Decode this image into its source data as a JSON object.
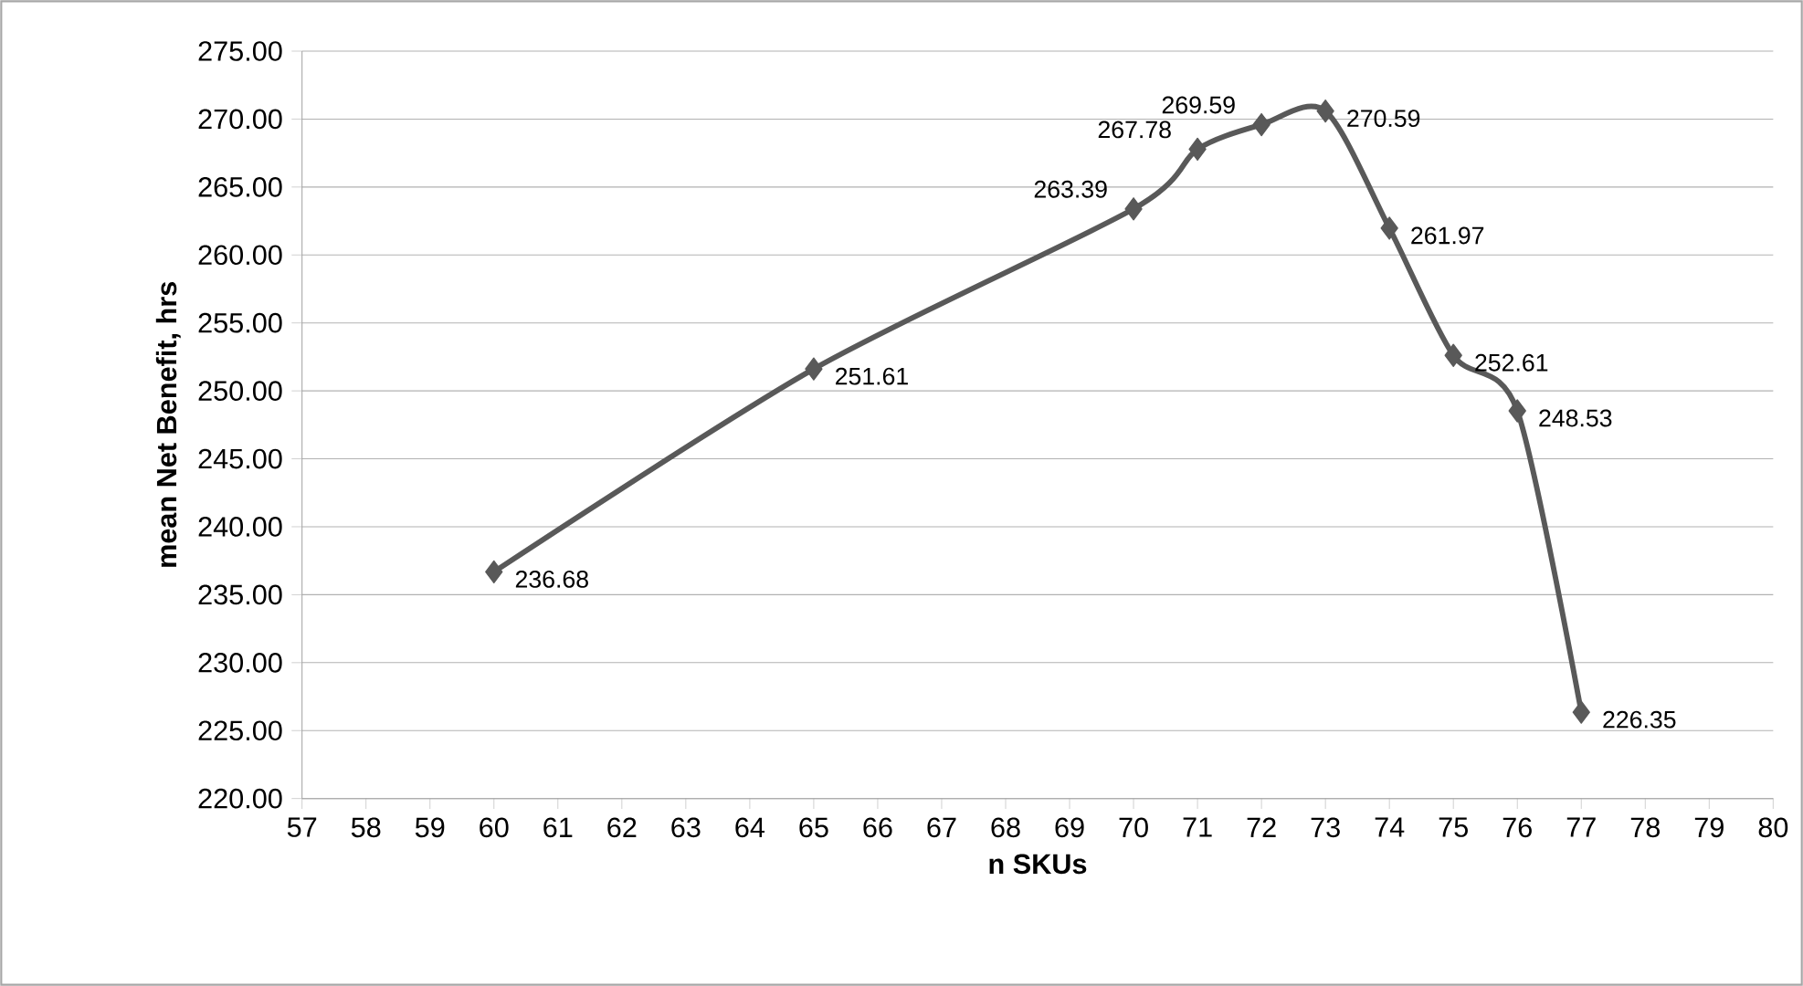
{
  "chart_data": {
    "type": "line",
    "xlabel": "n  SKUs",
    "ylabel": "mean Net Benefit, hrs",
    "x": [
      60,
      65,
      70,
      71,
      72,
      73,
      74,
      75,
      76,
      77
    ],
    "series": [
      {
        "color": "#595959",
        "values": [
          236.68,
          251.61,
          263.39,
          267.78,
          269.59,
          270.59,
          261.97,
          252.61,
          248.53,
          226.35
        ]
      }
    ],
    "xlim": [
      57,
      80
    ],
    "xticks": [
      57,
      58,
      59,
      60,
      61,
      62,
      63,
      64,
      65,
      66,
      67,
      68,
      69,
      70,
      71,
      72,
      73,
      74,
      75,
      76,
      77,
      78,
      79,
      80
    ],
    "ylim": [
      220,
      275
    ],
    "yticks": [
      {
        "value": 220,
        "label": "220.00"
      },
      {
        "value": 225,
        "label": "225.00"
      },
      {
        "value": 230,
        "label": "230.00"
      },
      {
        "value": 235,
        "label": "235.00"
      },
      {
        "value": 240,
        "label": "240.00"
      },
      {
        "value": 245,
        "label": "245.00"
      },
      {
        "value": 250,
        "label": "250.00"
      },
      {
        "value": 255,
        "label": "255.00"
      },
      {
        "value": 260,
        "label": "260.00"
      },
      {
        "value": 265,
        "label": "265.00"
      },
      {
        "value": 270,
        "label": "270.00"
      },
      {
        "value": 275,
        "label": "275.00"
      }
    ],
    "grid": "y",
    "marker": "diamond",
    "line_style": "solid",
    "data_labels": true
  }
}
